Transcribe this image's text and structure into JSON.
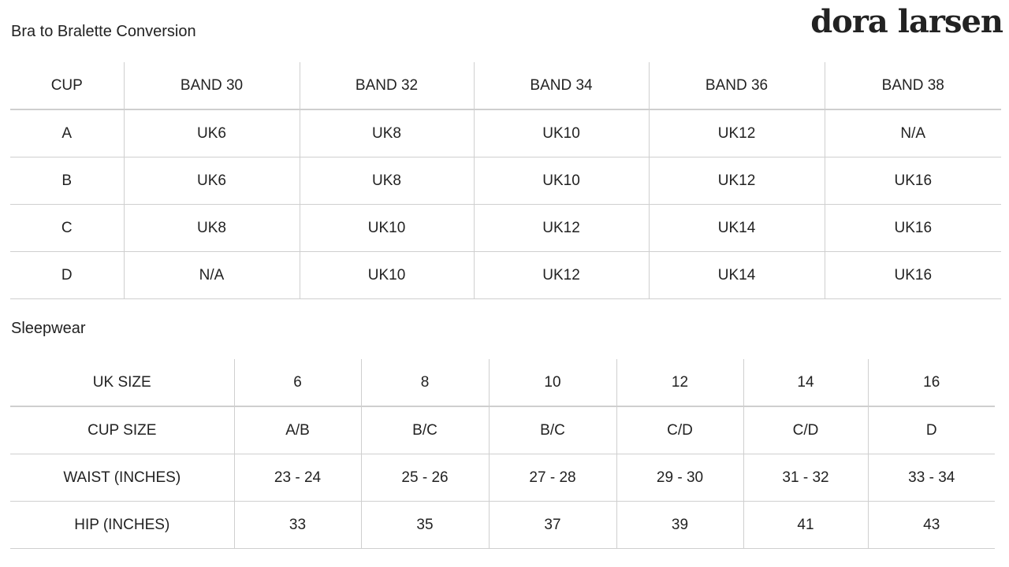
{
  "brand": "dora larsen",
  "bra_section": {
    "title": "Bra to Bralette Conversion",
    "headers": [
      "CUP",
      "BAND 30",
      "BAND 32",
      "BAND 34",
      "BAND 36",
      "BAND 38"
    ],
    "rows": [
      [
        "A",
        "UK6",
        "UK8",
        "UK10",
        "UK12",
        "N/A"
      ],
      [
        "B",
        "UK6",
        "UK8",
        "UK10",
        "UK12",
        "UK16"
      ],
      [
        "C",
        "UK8",
        "UK10",
        "UK12",
        "UK14",
        "UK16"
      ],
      [
        "D",
        "N/A",
        "UK10",
        "UK12",
        "UK14",
        "UK16"
      ]
    ]
  },
  "sleep_section": {
    "title": "Sleepwear",
    "rows": [
      [
        "UK SIZE",
        "6",
        "8",
        "10",
        "12",
        "14",
        "16"
      ],
      [
        "CUP SIZE",
        "A/B",
        "B/C",
        "B/C",
        "C/D",
        "C/D",
        "D"
      ],
      [
        "WAIST (INCHES)",
        "23 - 24",
        "25 - 26",
        "27 - 28",
        "29 - 30",
        "31 - 32",
        "33 - 34"
      ],
      [
        "HIP (INCHES)",
        "33",
        "35",
        "37",
        "39",
        "41",
        "43"
      ]
    ]
  }
}
